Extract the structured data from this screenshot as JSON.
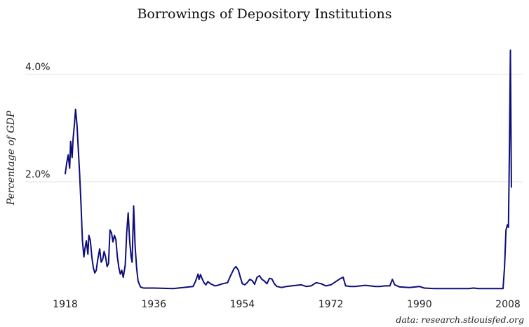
{
  "chart_data": {
    "type": "line",
    "title": "Borrowings of Depository Institutions",
    "xlabel": "",
    "ylabel": "Percentage of GDP",
    "source": "data: research.stlouisfed.org",
    "xlim": [
      1918,
      2009
    ],
    "ylim": [
      0,
      4.6
    ],
    "x_ticks": [
      1918,
      1936,
      1954,
      1972,
      1990,
      2008
    ],
    "x_tick_labels": [
      "1918",
      "1936",
      "1954",
      "1972",
      "1990",
      "2008"
    ],
    "y_ticks": [
      2.0,
      4.0
    ],
    "y_tick_labels": [
      "2.0%",
      "4.0%"
    ],
    "grid": true,
    "legend": "none",
    "line_color": "#0d0d7a",
    "series": [
      {
        "x": [
          1918.0,
          1918.3,
          1918.6,
          1918.9,
          1919.1,
          1919.4,
          1919.6,
          1919.9,
          1920.1,
          1920.4,
          1920.6,
          1920.9,
          1921.2,
          1921.5,
          1921.8,
          1922.0,
          1922.3,
          1922.6,
          1922.8,
          1923.1,
          1923.4,
          1923.7,
          1924.0,
          1924.3,
          1924.6,
          1925.0,
          1925.3,
          1925.6,
          1925.9,
          1926.2,
          1926.5,
          1926.8,
          1927.1,
          1927.4,
          1927.7,
          1928.0,
          1928.3,
          1928.6,
          1928.9,
          1929.2,
          1929.5,
          1929.8,
          1930.2,
          1930.5,
          1930.8,
          1931.1,
          1931.4,
          1931.6,
          1931.9,
          1932.2,
          1932.5,
          1932.8,
          1933.1,
          1933.3,
          1933.6,
          1933.9,
          1934.2,
          1934.5,
          1935.0,
          1936.0,
          1940.0,
          1944.0,
          1944.5,
          1945.0,
          1945.2,
          1945.5,
          1945.8,
          1946.2,
          1946.6,
          1947.0,
          1947.5,
          1948.0,
          1948.5,
          1949.0,
          1950.0,
          1951.0,
          1951.6,
          1952.3,
          1952.7,
          1953.2,
          1953.6,
          1954.0,
          1954.5,
          1955.0,
          1955.5,
          1956.0,
          1956.5,
          1957.0,
          1957.5,
          1958.0,
          1958.5,
          1959.0,
          1959.5,
          1960.0,
          1960.5,
          1961.0,
          1962.0,
          1963.0,
          1964.0,
          1965.0,
          1966.0,
          1967.0,
          1968.0,
          1969.0,
          1970.0,
          1971.0,
          1972.0,
          1973.0,
          1974.0,
          1974.5,
          1975.0,
          1976.0,
          1977.0,
          1978.0,
          1979.0,
          1980.0,
          1981.0,
          1982.0,
          1983.0,
          1984.0,
          1984.5,
          1985.0,
          1986.0,
          1988.0,
          1990.0,
          1991.0,
          1993.0,
          1996.0,
          2000.0,
          2001.0,
          2002.0,
          2005.0,
          2007.0,
          2007.3,
          2007.6,
          2007.9,
          2008.1,
          2008.3,
          2008.5,
          2008.7
        ],
        "values": [
          2.15,
          2.35,
          2.5,
          2.25,
          2.75,
          2.45,
          2.8,
          3.1,
          3.35,
          3.05,
          2.7,
          2.2,
          1.6,
          0.9,
          0.6,
          0.75,
          0.9,
          0.65,
          1.0,
          0.9,
          0.6,
          0.4,
          0.3,
          0.35,
          0.55,
          0.75,
          0.5,
          0.55,
          0.7,
          0.6,
          0.42,
          0.48,
          1.1,
          1.05,
          0.88,
          1.0,
          0.92,
          0.6,
          0.4,
          0.28,
          0.35,
          0.22,
          0.45,
          1.05,
          1.42,
          0.9,
          0.6,
          0.5,
          1.55,
          0.8,
          0.4,
          0.15,
          0.08,
          0.04,
          0.03,
          0.02,
          0.02,
          0.02,
          0.02,
          0.02,
          0.01,
          0.05,
          0.15,
          0.28,
          0.18,
          0.27,
          0.2,
          0.12,
          0.08,
          0.14,
          0.1,
          0.08,
          0.06,
          0.07,
          0.1,
          0.12,
          0.25,
          0.38,
          0.42,
          0.35,
          0.22,
          0.1,
          0.08,
          0.12,
          0.18,
          0.16,
          0.09,
          0.22,
          0.25,
          0.18,
          0.15,
          0.1,
          0.2,
          0.19,
          0.1,
          0.05,
          0.03,
          0.05,
          0.06,
          0.07,
          0.08,
          0.05,
          0.06,
          0.12,
          0.1,
          0.06,
          0.08,
          0.14,
          0.2,
          0.22,
          0.06,
          0.05,
          0.05,
          0.06,
          0.07,
          0.06,
          0.05,
          0.05,
          0.06,
          0.06,
          0.18,
          0.08,
          0.04,
          0.03,
          0.05,
          0.02,
          0.01,
          0.01,
          0.01,
          0.02,
          0.01,
          0.01,
          0.01,
          0.4,
          1.1,
          1.2,
          1.15,
          2.6,
          4.45,
          1.9
        ]
      }
    ]
  }
}
